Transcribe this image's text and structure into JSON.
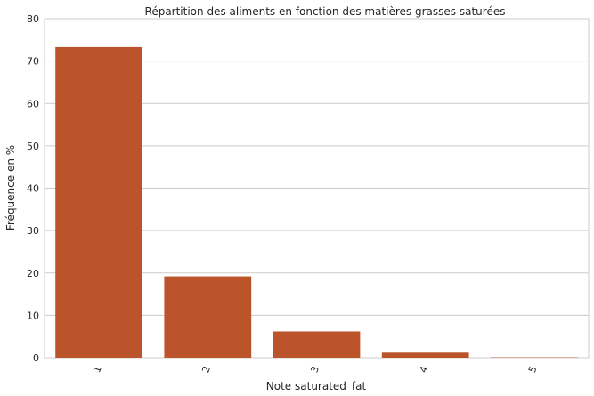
{
  "chart_data": {
    "type": "bar",
    "title": "Répartition des aliments en fonction des matières grasses saturées",
    "xlabel": "Note saturated_fat",
    "ylabel": "Fréquence en %",
    "categories": [
      "1",
      "2",
      "3",
      "4",
      "5"
    ],
    "values": [
      73.3,
      19.2,
      6.2,
      1.2,
      0.1
    ],
    "ylim": [
      0,
      80
    ],
    "yticks": [
      "0",
      "10",
      "20",
      "30",
      "40",
      "50",
      "60",
      "70",
      "80"
    ],
    "grid": true,
    "bar_color": "#bc542b",
    "grid_color": "#cccccc",
    "xtick_rotation": -70
  }
}
